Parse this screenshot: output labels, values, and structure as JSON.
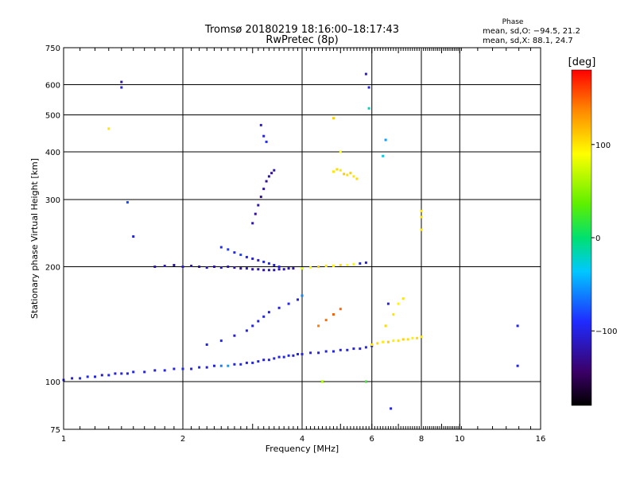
{
  "chart_data": {
    "type": "scatter",
    "title": "Tromsø 20180219 18:16:00–18:17:43",
    "subtitle": "RwPretec (8p)",
    "xlabel": "Frequency [MHz]",
    "ylabel": "Stationary phase Virtual Height [km]",
    "x_scale": "log",
    "y_scale": "log",
    "xlim": [
      1,
      16
    ],
    "ylim": [
      75,
      750
    ],
    "grid": true,
    "x_ticks": [
      1,
      2,
      4,
      6,
      8,
      10,
      16
    ],
    "x_tick_labels": [
      "1",
      "2",
      "4",
      "6",
      "8",
      "10",
      "16"
    ],
    "y_ticks": [
      75,
      100,
      200,
      300,
      400,
      500,
      600,
      750
    ],
    "y_tick_labels": [
      "75",
      "100",
      "200",
      "300",
      "400",
      "500",
      "600",
      "750"
    ],
    "phase_info": {
      "heading": "Phase",
      "o_line": "mean, sd,O: −94.5, 21.2",
      "x_line": "mean, sd,X:  88.1, 24.7"
    },
    "colorbar": {
      "label": "[deg]",
      "range": [
        -180,
        180
      ],
      "ticks": [
        -100,
        0,
        100
      ],
      "tick_labels": [
        "−100",
        "0",
        "100"
      ]
    },
    "series": [
      {
        "x": [
          1.0,
          1.05,
          1.1,
          1.15,
          1.2,
          1.25,
          1.3,
          1.35,
          1.4,
          1.45,
          1.5,
          1.6,
          1.7,
          1.8,
          1.9,
          2.0,
          2.1,
          2.2,
          2.3,
          2.4,
          2.5,
          2.6,
          2.7,
          2.8,
          2.9,
          3.0,
          3.1,
          3.2,
          3.3,
          3.4,
          3.5,
          3.6,
          3.7,
          3.8,
          3.9,
          4.0,
          4.2,
          4.4,
          4.6,
          4.8,
          5.0,
          5.2,
          5.4,
          5.6,
          5.8,
          6.0
        ],
        "y": [
          101,
          102,
          102,
          103,
          103,
          104,
          104,
          105,
          105,
          105,
          106,
          106,
          107,
          107,
          108,
          108,
          108,
          109,
          109,
          110,
          110,
          110,
          111,
          111,
          112,
          112,
          113,
          114,
          114,
          115,
          116,
          116,
          117,
          117,
          118,
          118,
          119,
          119,
          120,
          120,
          121,
          121,
          122,
          122,
          123,
          124
        ],
        "phase": [
          -100,
          -105,
          -98,
          -92,
          -100,
          -110,
          -95,
          -102,
          -98,
          -100,
          -97,
          -103,
          -105,
          -99,
          -100,
          -96,
          -101,
          -98,
          -104,
          -100,
          -60,
          -50,
          -100,
          -95,
          -102,
          -98,
          -100,
          -105,
          -97,
          -99,
          -101,
          -100,
          -96,
          -103,
          -98,
          -100,
          -99,
          -102,
          -100,
          -97,
          -101,
          -98,
          -100,
          -103,
          -99,
          -100
        ]
      },
      {
        "x": [
          1.7,
          1.8,
          1.9,
          2.0,
          2.1,
          2.2,
          2.3,
          2.4,
          2.5,
          2.6,
          2.7,
          2.8,
          2.9,
          3.0,
          3.1,
          3.2,
          3.3,
          3.4,
          3.5,
          3.6,
          3.7,
          3.8
        ],
        "y": [
          200,
          201,
          202,
          200,
          201,
          200,
          199,
          200,
          199,
          200,
          199,
          198,
          198,
          197,
          197,
          196,
          196,
          196,
          197,
          197,
          198,
          198
        ],
        "phase": [
          -120,
          -115,
          -125,
          -110,
          -118,
          -122,
          -115,
          -120,
          -112,
          -118,
          -120,
          -125,
          -115,
          -120,
          -118,
          -122,
          -115,
          -118,
          -120,
          -115,
          -118,
          -120
        ]
      },
      {
        "x": [
          2.5,
          2.6,
          2.7,
          2.8,
          2.9,
          3.0,
          3.1,
          3.2,
          3.3,
          3.4,
          3.5
        ],
        "y": [
          225,
          222,
          218,
          215,
          212,
          210,
          208,
          206,
          204,
          202,
          200
        ],
        "phase": [
          -90,
          -85,
          -95,
          -80,
          -100,
          -105,
          -110,
          -100,
          -95,
          -105,
          -100
        ]
      },
      {
        "x": [
          3.0,
          3.05,
          3.1,
          3.15,
          3.2,
          3.25,
          3.3,
          3.35,
          3.4
        ],
        "y": [
          260,
          275,
          290,
          305,
          320,
          335,
          345,
          352,
          358
        ],
        "phase": [
          -120,
          -125,
          -118,
          -130,
          -122,
          -128,
          -120,
          -125,
          -118
        ]
      },
      {
        "x": [
          2.3,
          2.5,
          2.7,
          2.9,
          3.0,
          3.1,
          3.2,
          3.3,
          3.5,
          3.7,
          3.9,
          4.0
        ],
        "y": [
          125,
          128,
          132,
          136,
          140,
          144,
          148,
          152,
          156,
          160,
          164,
          168
        ],
        "phase": [
          -100,
          -95,
          -105,
          -98,
          -100,
          -102,
          -97,
          -100,
          -103,
          -98,
          -100,
          -60
        ]
      },
      {
        "x": [
          4.0,
          4.2,
          4.4,
          4.6,
          4.8,
          5.0,
          5.2,
          5.4,
          5.6,
          5.8
        ],
        "y": [
          198,
          199,
          200,
          201,
          201,
          202,
          202,
          203,
          204,
          205
        ],
        "phase": [
          80,
          90,
          110,
          100,
          95,
          105,
          90,
          85,
          -100,
          -105
        ]
      },
      {
        "x": [
          4.8,
          4.9,
          5.0,
          5.1,
          5.2,
          5.3,
          5.4,
          5.5
        ],
        "y": [
          355,
          360,
          358,
          350,
          348,
          352,
          345,
          340
        ],
        "phase": [
          100,
          105,
          98,
          110,
          102,
          108,
          100,
          104
        ]
      },
      {
        "x": [
          6.0,
          6.2,
          6.4,
          6.6,
          6.8,
          7.0,
          7.2,
          7.4,
          7.6,
          7.8,
          8.0
        ],
        "y": [
          125,
          126,
          127,
          127,
          128,
          128,
          129,
          129,
          130,
          130,
          131
        ],
        "phase": [
          100,
          105,
          98,
          110,
          95,
          100,
          108,
          102,
          96,
          104,
          100
        ]
      },
      {
        "x": [
          6.5,
          6.8,
          7.0,
          7.2
        ],
        "y": [
          140,
          150,
          160,
          165
        ],
        "phase": [
          105,
          100,
          95,
          100
        ]
      },
      {
        "x": [
          4.4,
          4.6,
          4.8,
          5.0
        ],
        "y": [
          140,
          145,
          150,
          155
        ],
        "phase": [
          140,
          145,
          150,
          148
        ]
      },
      {
        "x": [
          1.4,
          1.4,
          1.5,
          1.3,
          1.45,
          3.15,
          3.2,
          3.25,
          4.8,
          5.0,
          5.8,
          5.9,
          5.9,
          6.5,
          6.4,
          6.6,
          8.0,
          8.0,
          8.0,
          14.0,
          14.0,
          6.7,
          4.5,
          5.8
        ],
        "y": [
          610,
          590,
          240,
          460,
          295,
          470,
          440,
          425,
          490,
          400,
          640,
          590,
          520,
          430,
          390,
          160,
          280,
          250,
          270,
          140,
          110,
          85,
          100,
          100
        ],
        "phase": [
          -120,
          -100,
          -100,
          100,
          -80,
          -110,
          -100,
          -90,
          110,
          90,
          -110,
          -100,
          -20,
          -50,
          -30,
          -100,
          100,
          100,
          100,
          -100,
          -100,
          -100,
          60,
          20
        ]
      }
    ]
  }
}
